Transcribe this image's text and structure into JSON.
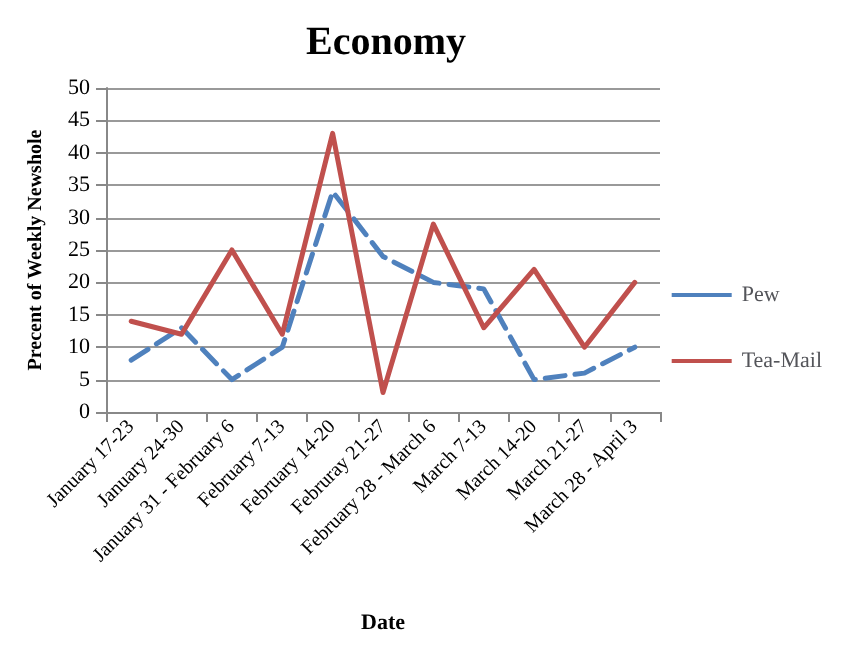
{
  "chart_data": {
    "type": "line",
    "title": "Economy",
    "xlabel": "Date",
    "ylabel": "Precent of Weekly Newshole",
    "categories": [
      "January 17-23",
      "January 24-30",
      "January 31 - February 6",
      "February 7-13",
      "February 14-20",
      "Februray 21-27",
      "February 28 - March 6",
      "March 7-13",
      "March 14-20",
      "March 21-27",
      "March 28 - April 3"
    ],
    "series": [
      {
        "name": "Pew",
        "color": "#4f81bd",
        "line_style": "dashed",
        "values": [
          8,
          13,
          5,
          10,
          34,
          24,
          20,
          19,
          5,
          6,
          10
        ]
      },
      {
        "name": "Tea-Mail",
        "color": "#c0504d",
        "line_style": "solid",
        "values": [
          14,
          12,
          25,
          12,
          43,
          3,
          29,
          13,
          22,
          10,
          20
        ]
      }
    ],
    "ylim": [
      0,
      50
    ],
    "yticks": [
      0,
      5,
      10,
      15,
      20,
      25,
      30,
      35,
      40,
      45,
      50
    ],
    "grid": "y",
    "legend": "right",
    "marker": "none"
  }
}
